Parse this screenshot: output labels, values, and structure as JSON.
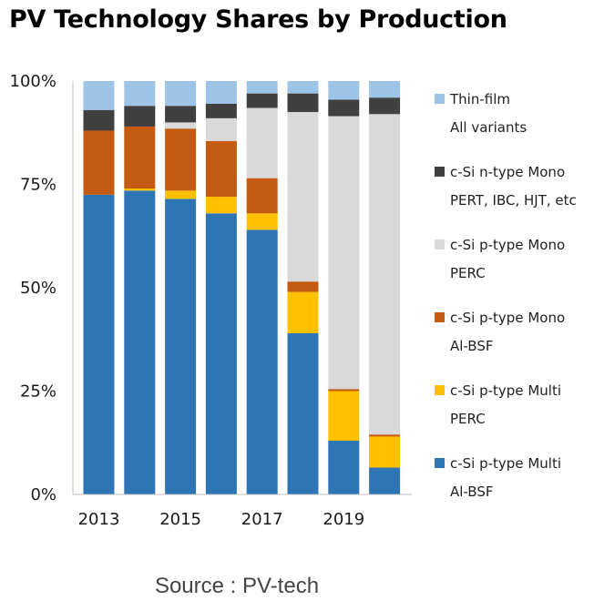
{
  "chart_data": {
    "type": "bar",
    "stacked": true,
    "title": "PV Technology Shares by Production",
    "source": "Source : PV-tech",
    "categories": [
      "2013",
      "2014",
      "2015",
      "2016",
      "2017",
      "2018",
      "2019",
      "2020"
    ],
    "x_tick_labels": [
      "2013",
      "2015",
      "2017",
      "2019"
    ],
    "y_ticks": [
      "0%",
      "25%",
      "50%",
      "75%",
      "100%"
    ],
    "ylim": [
      0,
      100
    ],
    "grid": false,
    "legend_position": "right",
    "series": [
      {
        "name": "c-Si p-type Multi",
        "sub": "Al-BSF",
        "color": "#2e75b6",
        "values": [
          72.5,
          73.5,
          71.5,
          68,
          64,
          39,
          13,
          6.5
        ]
      },
      {
        "name": "c-Si p-type Multi",
        "sub": "PERC",
        "color": "#ffc000",
        "values": [
          0,
          0.5,
          2,
          4,
          4,
          10,
          12,
          7.5
        ]
      },
      {
        "name": "c-Si p-type Mono",
        "sub": "Al-BSF",
        "color": "#c55a11",
        "values": [
          15.5,
          15,
          15,
          13.5,
          8.5,
          2.5,
          0.5,
          0.5
        ]
      },
      {
        "name": "c-Si p-type Mono",
        "sub": "PERC",
        "color": "#d9d9d9",
        "values": [
          0,
          0,
          1.5,
          5.5,
          17,
          41,
          66,
          77.5
        ]
      },
      {
        "name": "c-Si n-type Mono",
        "sub": "PERT, IBC, HJT, etc",
        "color": "#404040",
        "values": [
          5,
          5,
          4,
          3.5,
          3.5,
          4.5,
          4,
          4
        ]
      },
      {
        "name": "Thin-film",
        "sub": "All variants",
        "color": "#9dc3e6",
        "values": [
          7,
          6,
          6,
          5.5,
          3,
          3,
          4.5,
          4
        ]
      }
    ]
  }
}
